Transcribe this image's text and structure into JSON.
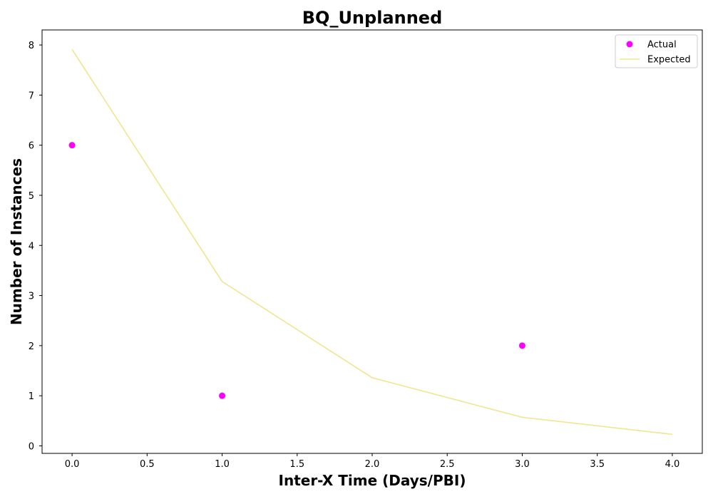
{
  "chart_data": {
    "type": "scatter",
    "title": "BQ_Unplanned",
    "xlabel": "Inter-X Time (Days/PBI)",
    "ylabel": "Number of Instances",
    "xlim": [
      -0.2,
      4.2
    ],
    "ylim": [
      -0.15,
      8.3
    ],
    "x_ticks": [
      0.0,
      0.5,
      1.0,
      1.5,
      2.0,
      2.5,
      3.0,
      3.5,
      4.0
    ],
    "x_tick_labels": [
      "0.0",
      "0.5",
      "1.0",
      "1.5",
      "2.0",
      "2.5",
      "3.0",
      "3.5",
      "4.0"
    ],
    "y_ticks": [
      0,
      1,
      2,
      3,
      4,
      5,
      6,
      7,
      8
    ],
    "y_tick_labels": [
      "0",
      "1",
      "2",
      "3",
      "4",
      "5",
      "6",
      "7",
      "8"
    ],
    "grid": false,
    "legend": "top-right",
    "series": [
      {
        "name": "Actual",
        "kind": "scatter",
        "color": "#ff00ff",
        "x": [
          0,
          1,
          3
        ],
        "y": [
          6,
          1,
          2
        ]
      },
      {
        "name": "Expected",
        "kind": "line",
        "color": "#f0e68c",
        "x": [
          0,
          1,
          2,
          3,
          4
        ],
        "y": [
          7.91,
          3.28,
          1.36,
          0.57,
          0.23
        ]
      }
    ]
  }
}
